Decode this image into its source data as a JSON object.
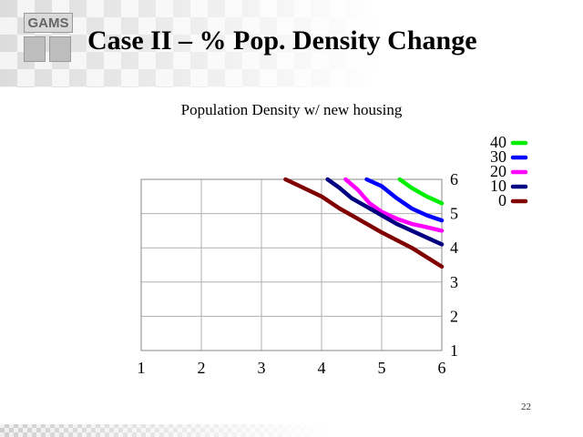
{
  "slide": {
    "title": "Case II – % Pop. Density Change",
    "logo_text": "GAMS",
    "page_number": "22"
  },
  "chart_data": {
    "type": "line",
    "title": "Population Density w/ new housing",
    "xlabel": "",
    "ylabel": "",
    "xlim": [
      1,
      6
    ],
    "ylim": [
      1,
      6
    ],
    "x_ticks": [
      "1",
      "2",
      "3",
      "4",
      "5",
      "6"
    ],
    "y_ticks": [
      "1",
      "2",
      "3",
      "4",
      "5",
      "6"
    ],
    "y_axis_side": "right",
    "grid": true,
    "legend_placement": "top-right",
    "series": [
      {
        "name": "40",
        "color": "#00ee00",
        "x": [
          5.3,
          5.5,
          5.75,
          6.0
        ],
        "y": [
          6.0,
          5.75,
          5.5,
          5.3
        ]
      },
      {
        "name": "30",
        "color": "#0000ff",
        "x": [
          4.75,
          5.0,
          5.25,
          5.5,
          5.75,
          6.0
        ],
        "y": [
          6.0,
          5.8,
          5.45,
          5.15,
          4.95,
          4.8
        ]
      },
      {
        "name": "20",
        "color": "#ff00ff",
        "x": [
          4.4,
          4.6,
          4.8,
          5.0,
          5.25,
          5.5,
          5.75,
          6.0
        ],
        "y": [
          6.0,
          5.7,
          5.3,
          5.05,
          4.85,
          4.7,
          4.6,
          4.5
        ]
      },
      {
        "name": "10",
        "color": "#000080",
        "x": [
          4.1,
          4.3,
          4.5,
          4.75,
          5.0,
          5.25,
          5.5,
          5.75,
          6.0
        ],
        "y": [
          6.0,
          5.75,
          5.45,
          5.2,
          4.95,
          4.7,
          4.5,
          4.3,
          4.1
        ]
      },
      {
        "name": "0",
        "color": "#800000",
        "x": [
          3.4,
          3.7,
          4.0,
          4.3,
          4.6,
          5.0,
          5.5,
          6.0
        ],
        "y": [
          6.0,
          5.75,
          5.5,
          5.15,
          4.85,
          4.45,
          4.0,
          3.45
        ]
      }
    ]
  }
}
